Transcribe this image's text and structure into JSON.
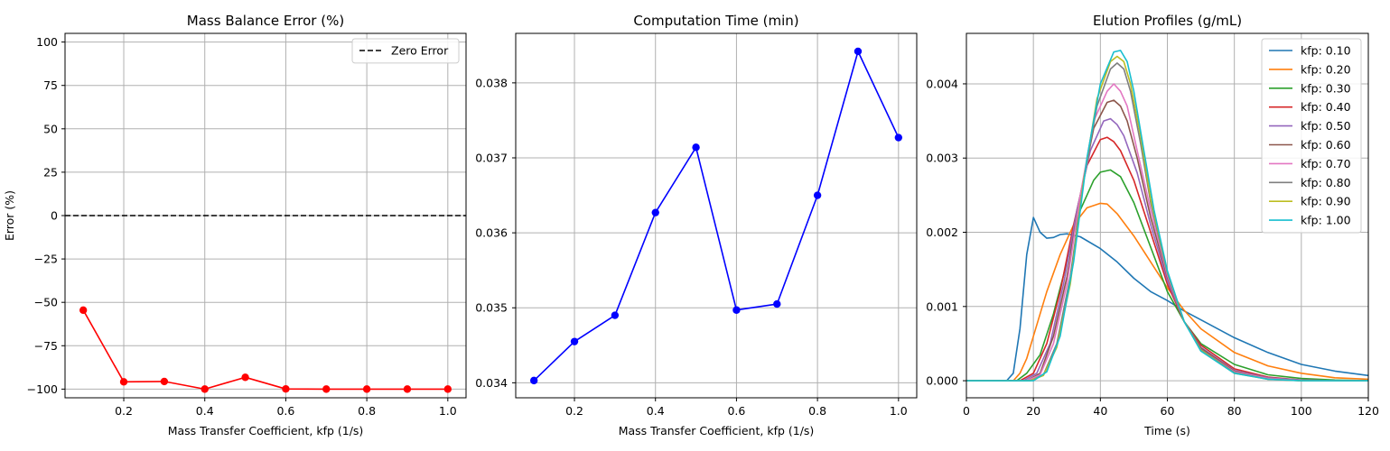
{
  "chart_data": [
    {
      "type": "line",
      "title": "Mass Balance Error (%)",
      "xlabel": "Mass Transfer Coefficient, kfp (1/s)",
      "ylabel": "Error (%)",
      "xlim": [
        0.055,
        1.045
      ],
      "ylim": [
        -105,
        105
      ],
      "xticks": [
        0.2,
        0.4,
        0.6,
        0.8,
        1.0
      ],
      "xtick_labels": [
        "0.2",
        "0.4",
        "0.6",
        "0.8",
        "1.0"
      ],
      "yticks": [
        -100,
        -75,
        -50,
        -25,
        0,
        25,
        50,
        75,
        100
      ],
      "ytick_labels": [
        "−100",
        "−75",
        "−50",
        "−25",
        "0",
        "25",
        "50",
        "75",
        "100"
      ],
      "grid": true,
      "legend": "top-right",
      "series": [
        {
          "name": "",
          "color": "#ff0000",
          "marker": "circle",
          "x": [
            0.1,
            0.2,
            0.3,
            0.4,
            0.5,
            0.6,
            0.7,
            0.8,
            0.9,
            1.0
          ],
          "y": [
            -54.5,
            -95.8,
            -95.6,
            -100,
            -93.2,
            -99.9,
            -100,
            -100,
            -100,
            -100
          ]
        },
        {
          "name": "Zero Error",
          "color": "#000000",
          "dash": true,
          "hline": 0
        }
      ]
    },
    {
      "type": "line",
      "title": "Computation Time (min)",
      "xlabel": "Mass Transfer Coefficient, kfp (1/s)",
      "ylabel": "",
      "xlim": [
        0.055,
        1.045
      ],
      "ylim": [
        0.0338,
        0.03866
      ],
      "xticks": [
        0.2,
        0.4,
        0.6,
        0.8,
        1.0
      ],
      "xtick_labels": [
        "0.2",
        "0.4",
        "0.6",
        "0.8",
        "1.0"
      ],
      "yticks": [
        0.034,
        0.035,
        0.036,
        0.037,
        0.038
      ],
      "ytick_labels": [
        "0.034",
        "0.035",
        "0.036",
        "0.037",
        "0.038"
      ],
      "grid": true,
      "series": [
        {
          "name": "",
          "color": "#0000ff",
          "marker": "circle",
          "x": [
            0.1,
            0.2,
            0.3,
            0.4,
            0.5,
            0.6,
            0.7,
            0.8,
            0.9,
            1.0
          ],
          "y": [
            0.03403,
            0.03455,
            0.0349,
            0.03627,
            0.03714,
            0.03497,
            0.03505,
            0.0365,
            0.03842,
            0.03727
          ]
        }
      ]
    },
    {
      "type": "line",
      "title": "Elution Profiles (g/mL)",
      "xlabel": "Time (s)",
      "ylabel": "",
      "xlim": [
        0,
        120
      ],
      "ylim": [
        -0.00023,
        0.00468
      ],
      "xticks": [
        0,
        20,
        40,
        60,
        80,
        100,
        120
      ],
      "xtick_labels": [
        "0",
        "20",
        "40",
        "60",
        "80",
        "100",
        "120"
      ],
      "yticks": [
        0,
        0.001,
        0.002,
        0.003,
        0.004
      ],
      "ytick_labels": [
        "0.000",
        "0.001",
        "0.002",
        "0.003",
        "0.004"
      ],
      "grid": true,
      "legend": "top-right",
      "series": [
        {
          "name": "kfp: 0.10",
          "color": "#1f77b4",
          "x": [
            0,
            12,
            14,
            16,
            18,
            20,
            22,
            24,
            26,
            28,
            30,
            34,
            40,
            45,
            50,
            55,
            60,
            65,
            70,
            80,
            90,
            100,
            110,
            120
          ],
          "y": [
            0,
            0,
            0.0001,
            0.0007,
            0.0017,
            0.0022,
            0.002,
            0.00192,
            0.00193,
            0.00197,
            0.00198,
            0.00194,
            0.00178,
            0.0016,
            0.00138,
            0.0012,
            0.00108,
            0.00094,
            0.00082,
            0.00058,
            0.00038,
            0.00022,
            0.00013,
            7e-05
          ]
        },
        {
          "name": "kfp: 0.20",
          "color": "#ff7f0e",
          "x": [
            0,
            14,
            16,
            18,
            20,
            24,
            28,
            32,
            36,
            40,
            42,
            45,
            50,
            55,
            60,
            65,
            70,
            80,
            90,
            100,
            110,
            120
          ],
          "y": [
            0,
            0,
            0.0001,
            0.0003,
            0.0006,
            0.0012,
            0.0017,
            0.0021,
            0.00233,
            0.00239,
            0.00238,
            0.00225,
            0.00195,
            0.0016,
            0.00125,
            0.00095,
            0.0007,
            0.00038,
            0.0002,
            0.0001,
            4e-05,
            2e-05
          ]
        },
        {
          "name": "kfp: 0.30",
          "color": "#2ca02c",
          "x": [
            0,
            15,
            18,
            22,
            26,
            30,
            34,
            38,
            40,
            43,
            46,
            50,
            55,
            60,
            65,
            70,
            80,
            90,
            100,
            110,
            120
          ],
          "y": [
            0,
            0,
            0.0001,
            0.00035,
            0.0009,
            0.0016,
            0.0023,
            0.0027,
            0.00281,
            0.00284,
            0.00275,
            0.0024,
            0.0018,
            0.0012,
            0.0008,
            0.0005,
            0.00022,
            8e-05,
            3e-05,
            1e-05,
            0
          ]
        },
        {
          "name": "kfp: 0.40",
          "color": "#d62728",
          "x": [
            0,
            16,
            20,
            24,
            28,
            32,
            36,
            40,
            42,
            44,
            46,
            50,
            55,
            60,
            65,
            70,
            80,
            90,
            100,
            110,
            120
          ],
          "y": [
            0,
            0,
            0.0001,
            0.0005,
            0.0012,
            0.0021,
            0.0029,
            0.00325,
            0.00328,
            0.00322,
            0.0031,
            0.0027,
            0.002,
            0.0013,
            0.0008,
            0.00048,
            0.00016,
            5e-05,
            1e-05,
            0,
            0
          ]
        },
        {
          "name": "kfp: 0.50",
          "color": "#9467bd",
          "x": [
            0,
            17,
            21,
            25,
            29,
            33,
            37,
            41,
            43,
            45,
            47,
            51,
            55,
            60,
            65,
            70,
            80,
            90,
            100,
            110,
            120
          ],
          "y": [
            0,
            0,
            0.0001,
            0.0005,
            0.0013,
            0.0023,
            0.0031,
            0.0035,
            0.00353,
            0.00345,
            0.0033,
            0.0028,
            0.0021,
            0.00135,
            0.0008,
            0.00045,
            0.00014,
            4e-05,
            1e-05,
            0,
            0
          ]
        },
        {
          "name": "kfp: 0.60",
          "color": "#8c564b",
          "x": [
            0,
            18,
            22,
            26,
            30,
            34,
            38,
            42,
            44,
            46,
            48,
            51,
            55,
            60,
            65,
            70,
            80,
            90,
            100,
            110,
            120
          ],
          "y": [
            0,
            0,
            0.0001,
            0.0006,
            0.0014,
            0.0025,
            0.0034,
            0.00375,
            0.00378,
            0.0037,
            0.0035,
            0.003,
            0.0022,
            0.0014,
            0.0008,
            0.00044,
            0.00013,
            3e-05,
            0,
            0,
            0
          ]
        },
        {
          "name": "kfp: 0.70",
          "color": "#e377c2",
          "x": [
            0,
            18,
            22,
            26,
            30,
            34,
            38,
            42,
            44,
            46,
            48,
            51,
            55,
            60,
            65,
            70,
            80,
            90,
            100,
            110,
            120
          ],
          "y": [
            0,
            0,
            8e-05,
            0.0005,
            0.0013,
            0.0025,
            0.0035,
            0.0039,
            0.004,
            0.0039,
            0.0037,
            0.0031,
            0.0023,
            0.00142,
            0.0008,
            0.00042,
            0.00012,
            3e-05,
            0,
            0,
            0
          ]
        },
        {
          "name": "kfp: 0.80",
          "color": "#7f7f7f",
          "x": [
            0,
            19,
            23,
            27,
            31,
            35,
            39,
            43,
            45,
            47,
            49,
            52,
            55,
            60,
            65,
            70,
            80,
            90,
            100,
            110,
            120
          ],
          "y": [
            0,
            0,
            8e-05,
            0.0005,
            0.0014,
            0.0027,
            0.0037,
            0.0042,
            0.00428,
            0.0042,
            0.0039,
            0.0032,
            0.0024,
            0.00145,
            0.0008,
            0.00042,
            0.00011,
            2e-05,
            0,
            0,
            0
          ]
        },
        {
          "name": "kfp: 0.90",
          "color": "#bcbd22",
          "x": [
            0,
            19,
            23,
            27,
            31,
            35,
            39,
            43,
            45,
            47,
            49,
            52,
            55,
            60,
            65,
            70,
            80,
            90,
            100,
            110,
            120
          ],
          "y": [
            0,
            0,
            7e-05,
            0.00045,
            0.0013,
            0.0027,
            0.0038,
            0.0043,
            0.00437,
            0.0043,
            0.004,
            0.0033,
            0.00245,
            0.00147,
            0.0008,
            0.00041,
            0.0001,
            2e-05,
            0,
            0,
            0
          ]
        },
        {
          "name": "kfp: 1.00",
          "color": "#17becf",
          "x": [
            0,
            20,
            24,
            28,
            32,
            36,
            40,
            44,
            46,
            48,
            50,
            53,
            56,
            60,
            65,
            70,
            80,
            90,
            100,
            110,
            120
          ],
          "y": [
            0,
            0,
            0.00012,
            0.0006,
            0.0016,
            0.003,
            0.004,
            0.00443,
            0.00445,
            0.0043,
            0.0039,
            0.0031,
            0.0023,
            0.00148,
            0.0008,
            0.0004,
            0.0001,
            2e-05,
            0,
            0,
            0
          ]
        }
      ]
    }
  ]
}
